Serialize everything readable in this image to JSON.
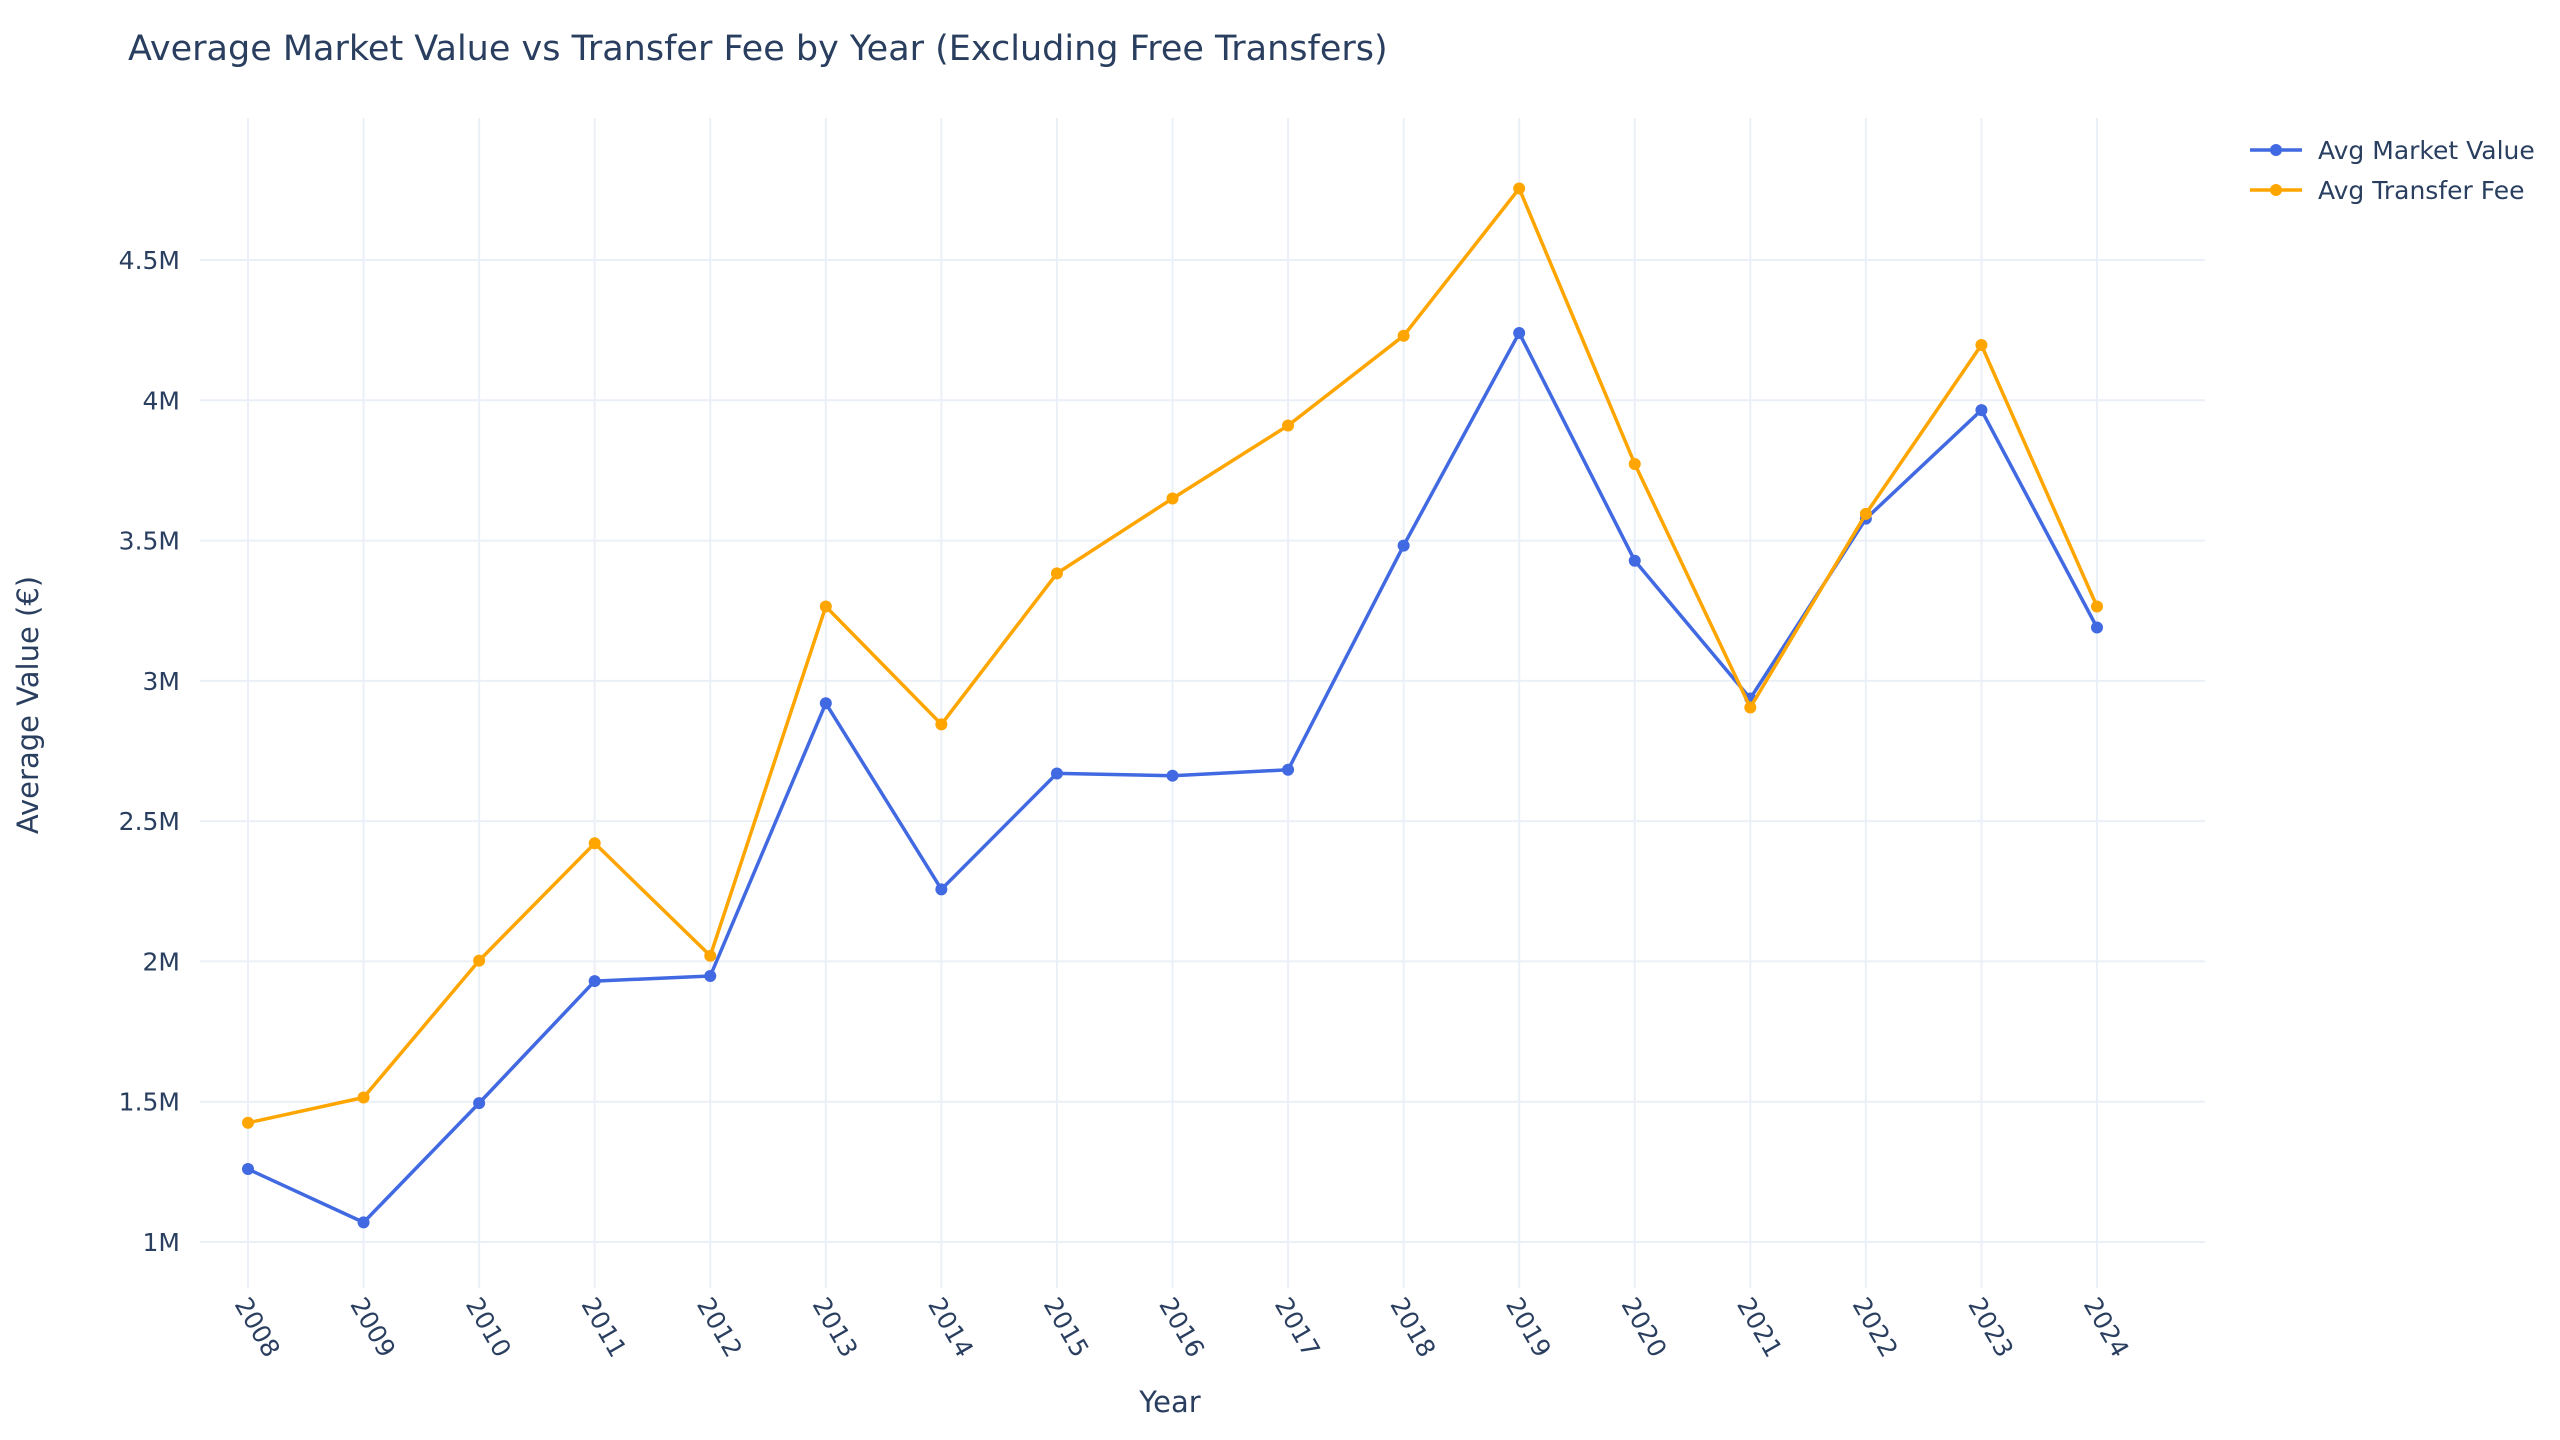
{
  "chart_data": {
    "type": "line",
    "title": "Average Market Value vs Transfer Fee by Year (Excluding Free Transfers)",
    "xlabel": "Year",
    "ylabel": "Average Value (€)",
    "categories": [
      "2008",
      "2009",
      "2010",
      "2011",
      "2012",
      "2013",
      "2014",
      "2015",
      "2016",
      "2017",
      "2018",
      "2019",
      "2020",
      "2021",
      "2022",
      "2023",
      "2024"
    ],
    "ylim": [
      750000,
      5000000
    ],
    "yticks": [
      1000000,
      1500000,
      2000000,
      2500000,
      3000000,
      3500000,
      4000000,
      4500000
    ],
    "ytick_labels": [
      "1M",
      "1.5M",
      "2M",
      "2.5M",
      "3M",
      "3.5M",
      "4M",
      "4.5M"
    ],
    "grid": true,
    "legend_position": "top-right",
    "series": [
      {
        "name": "Avg Market Value",
        "color": "#4169e1",
        "values": [
          1260000,
          1070000,
          1495000,
          1930000,
          1948000,
          2920000,
          2257000,
          2670000,
          2662000,
          2683000,
          3482000,
          4240000,
          3428000,
          2937000,
          3578000,
          3965000,
          3190000
        ]
      },
      {
        "name": "Avg Transfer Fee",
        "color": "#ffa500",
        "values": [
          1425000,
          1515000,
          2003000,
          2421000,
          2020000,
          3265000,
          2845000,
          3383000,
          3650000,
          3910000,
          4230000,
          4755000,
          3773000,
          2905000,
          3595000,
          4197000,
          3265000
        ]
      }
    ]
  }
}
